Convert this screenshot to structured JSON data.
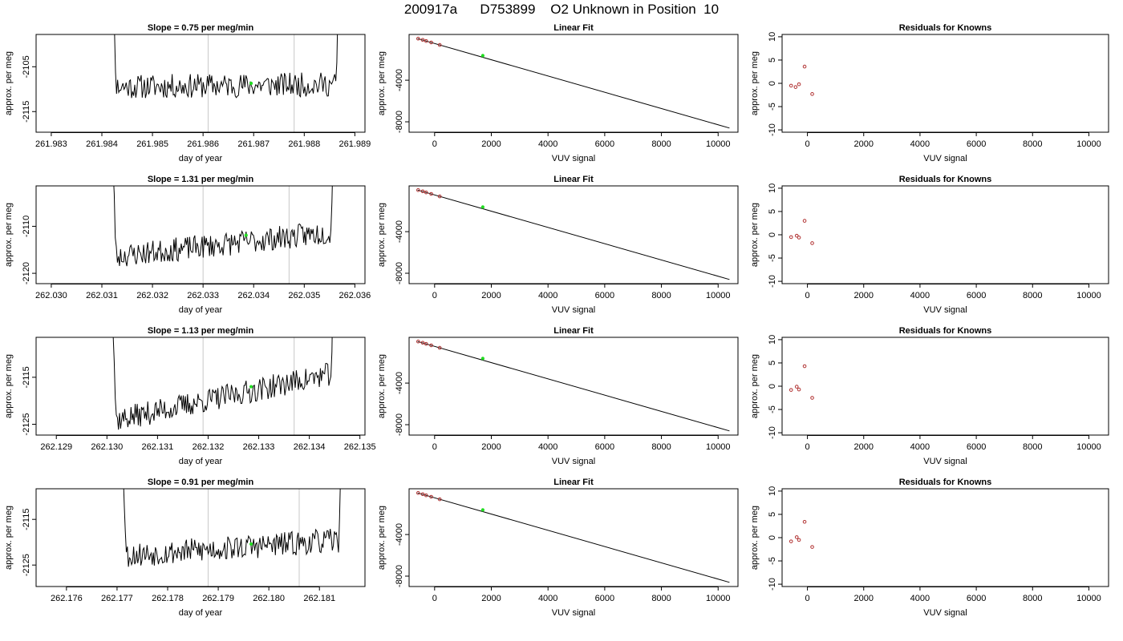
{
  "title": "200917a      D753899    O2 Unknown in Position  10",
  "colors": {
    "trace": "#000000",
    "vline": "#c8c8c8",
    "unknown": "#22dd22",
    "residual": "#b03030",
    "axis": "#000000"
  },
  "chart_data": [
    {
      "type": "line",
      "row": 1,
      "title": "Slope =  0.75  per meg/min",
      "xlabel": "day of year",
      "ylabel": "approx. per meg",
      "xlim": [
        261.9827,
        261.9892
      ],
      "ylim": [
        -2119.6,
        -2097.8
      ],
      "xticks": [
        "261.983",
        "261.984",
        "261.985",
        "261.986",
        "261.987",
        "261.988",
        "261.989"
      ],
      "xtick_values": [
        261.983,
        261.984,
        261.985,
        261.986,
        261.987,
        261.988,
        261.989
      ],
      "yticks": [
        "-2105",
        "-2115"
      ],
      "ytick_values": [
        -2105,
        -2115
      ],
      "vlines": [
        261.9861,
        261.9878
      ],
      "trace_x_start": 261.9841,
      "trace_x_end": 261.98875,
      "baseline": -2109.5,
      "drift": 0.6,
      "noise": 1.7,
      "seed": 11,
      "unknown_point": [
        261.98695,
        -2108.7
      ]
    },
    {
      "type": "line",
      "row": 1,
      "title": "Linear Fit",
      "xlabel": "VUV signal",
      "ylabel": "approx. per meg",
      "xlim": [
        -900,
        10700
      ],
      "ylim": [
        -9000,
        400
      ],
      "xticks": [
        "0",
        "2000",
        "4000",
        "6000",
        "8000",
        "10000"
      ],
      "xtick_values": [
        0,
        2000,
        4000,
        6000,
        8000,
        10000
      ],
      "yticks": [
        "-4000",
        "-8000"
      ],
      "ytick_values": [
        -4000,
        -8000
      ],
      "fit_line": {
        "x": [
          -600,
          10400
        ],
        "y": [
          0,
          -8600
        ]
      },
      "knowns": {
        "x": [
          -580,
          -420,
          -300,
          -120,
          180
        ],
        "y": [
          -2,
          -120,
          -230,
          -370,
          -610
        ]
      },
      "unknown_point": [
        1700,
        -1630
      ]
    },
    {
      "type": "scatter",
      "row": 1,
      "title": "Residuals for Knowns",
      "xlabel": "VUV signal",
      "ylabel": "approx. per meg",
      "xlim": [
        -900,
        10700
      ],
      "ylim": [
        -10.5,
        10.5
      ],
      "xticks": [
        "0",
        "2000",
        "4000",
        "6000",
        "8000",
        "10000"
      ],
      "xtick_values": [
        0,
        2000,
        4000,
        6000,
        8000,
        10000
      ],
      "yticks": [
        "-10",
        "-5",
        "0",
        "5",
        "10"
      ],
      "ytick_values": [
        -10,
        -5,
        0,
        5,
        10
      ],
      "x": [
        -580,
        -420,
        -300,
        -100,
        170
      ],
      "y": [
        -0.5,
        -0.8,
        -0.2,
        3.6,
        -2.3
      ]
    },
    {
      "type": "line",
      "row": 2,
      "title": "Slope =  1.31  per meg/min",
      "xlabel": "day of year",
      "ylabel": "approx. per meg",
      "xlim": [
        262.0297,
        262.0362
      ],
      "ylim": [
        -2122.2,
        -2101.4
      ],
      "xticks": [
        "262.030",
        "262.031",
        "262.032",
        "262.033",
        "262.034",
        "262.035",
        "262.036"
      ],
      "xtick_values": [
        262.03,
        262.031,
        262.032,
        262.033,
        262.034,
        262.035,
        262.036
      ],
      "yticks": [
        "-2110",
        "-2120"
      ],
      "ytick_values": [
        -2110,
        -2120
      ],
      "vlines": [
        262.033,
        262.0347
      ],
      "trace_x_start": 262.0311,
      "trace_x_end": 262.03565,
      "baseline": -2116.6,
      "drift": 5.5,
      "noise": 1.6,
      "seed": 23,
      "unknown_point": [
        262.03385,
        -2111.9
      ]
    },
    {
      "type": "line",
      "row": 2,
      "title": "Linear Fit",
      "xlabel": "VUV signal",
      "ylabel": "approx. per meg",
      "xlim": [
        -900,
        10700
      ],
      "ylim": [
        -9000,
        400
      ],
      "xticks": [
        "0",
        "2000",
        "4000",
        "6000",
        "8000",
        "10000"
      ],
      "xtick_values": [
        0,
        2000,
        4000,
        6000,
        8000,
        10000
      ],
      "yticks": [
        "-4000",
        "-8000"
      ],
      "ytick_values": [
        -4000,
        -8000
      ],
      "fit_line": {
        "x": [
          -600,
          10400
        ],
        "y": [
          0,
          -8600
        ]
      },
      "knowns": {
        "x": [
          -580,
          -420,
          -300,
          -120,
          180
        ],
        "y": [
          -2,
          -120,
          -230,
          -370,
          -610
        ]
      },
      "unknown_point": [
        1700,
        -1630
      ]
    },
    {
      "type": "scatter",
      "row": 2,
      "title": "Residuals for Knowns",
      "xlabel": "VUV signal",
      "ylabel": "approx. per meg",
      "xlim": [
        -900,
        10700
      ],
      "ylim": [
        -10.5,
        10.5
      ],
      "xticks": [
        "0",
        "2000",
        "4000",
        "6000",
        "8000",
        "10000"
      ],
      "xtick_values": [
        0,
        2000,
        4000,
        6000,
        8000,
        10000
      ],
      "yticks": [
        "-10",
        "-5",
        "0",
        "5",
        "10"
      ],
      "ytick_values": [
        -10,
        -5,
        0,
        5,
        10
      ],
      "x": [
        -580,
        -380,
        -300,
        -100,
        170
      ],
      "y": [
        -0.5,
        -0.2,
        -0.6,
        3.0,
        -1.8
      ]
    },
    {
      "type": "line",
      "row": 3,
      "title": "Slope =  1.13  per meg/min",
      "xlabel": "day of year",
      "ylabel": "approx. per meg",
      "xlim": [
        262.1286,
        262.1351
      ],
      "ylim": [
        -2127.3,
        -2106.5
      ],
      "xticks": [
        "262.129",
        "262.130",
        "262.131",
        "262.132",
        "262.133",
        "262.134",
        "262.135"
      ],
      "xtick_values": [
        262.129,
        262.13,
        262.131,
        262.132,
        262.133,
        262.134,
        262.135
      ],
      "yticks": [
        "-2115",
        "-2125"
      ],
      "ytick_values": [
        -2115,
        -2125
      ],
      "vlines": [
        262.1319,
        262.1337
      ],
      "trace_x_start": 262.13,
      "trace_x_end": 262.13455,
      "baseline": -2124.5,
      "drift": 10.5,
      "noise": 1.6,
      "seed": 37,
      "unknown_point": [
        262.13285,
        -2117.0
      ]
    },
    {
      "type": "line",
      "row": 3,
      "title": "Linear Fit",
      "xlabel": "VUV signal",
      "ylabel": "approx. per meg",
      "xlim": [
        -900,
        10700
      ],
      "ylim": [
        -9000,
        400
      ],
      "xticks": [
        "0",
        "2000",
        "4000",
        "6000",
        "8000",
        "10000"
      ],
      "xtick_values": [
        0,
        2000,
        4000,
        6000,
        8000,
        10000
      ],
      "yticks": [
        "-4000",
        "-8000"
      ],
      "ytick_values": [
        -4000,
        -8000
      ],
      "fit_line": {
        "x": [
          -600,
          10400
        ],
        "y": [
          0,
          -8600
        ]
      },
      "knowns": {
        "x": [
          -580,
          -420,
          -300,
          -120,
          180
        ],
        "y": [
          -2,
          -120,
          -230,
          -370,
          -610
        ]
      },
      "unknown_point": [
        1700,
        -1630
      ]
    },
    {
      "type": "scatter",
      "row": 3,
      "title": "Residuals for Knowns",
      "xlabel": "VUV signal",
      "ylabel": "approx. per meg",
      "xlim": [
        -900,
        10700
      ],
      "ylim": [
        -10.5,
        10.5
      ],
      "xticks": [
        "0",
        "2000",
        "4000",
        "6000",
        "8000",
        "10000"
      ],
      "xtick_values": [
        0,
        2000,
        4000,
        6000,
        8000,
        10000
      ],
      "yticks": [
        "-10",
        "-5",
        "0",
        "5",
        "10"
      ],
      "ytick_values": [
        -10,
        -5,
        0,
        5,
        10
      ],
      "x": [
        -580,
        -380,
        -300,
        -100,
        170
      ],
      "y": [
        -0.8,
        -0.1,
        -0.7,
        4.3,
        -2.5
      ]
    },
    {
      "type": "line",
      "row": 4,
      "title": "Slope =  0.91  per meg/min",
      "xlabel": "day of year",
      "ylabel": "approx. per meg",
      "xlim": [
        262.1754,
        262.1819
      ],
      "ylim": [
        -2129.7,
        -2108.3
      ],
      "xticks": [
        "262.176",
        "262.177",
        "262.178",
        "262.179",
        "262.180",
        "262.181"
      ],
      "xtick_values": [
        262.176,
        262.177,
        262.178,
        262.179,
        262.18,
        262.181
      ],
      "yticks": [
        "-2115",
        "-2125"
      ],
      "ytick_values": [
        -2115,
        -2125
      ],
      "vlines": [
        262.1788,
        262.1806
      ],
      "trace_x_start": 262.177,
      "trace_x_end": 262.1815,
      "baseline": -2123.0,
      "drift": 3.5,
      "noise": 1.7,
      "seed": 53,
      "unknown_point": [
        262.17965,
        -2120.4
      ]
    },
    {
      "type": "line",
      "row": 4,
      "title": "Linear Fit",
      "xlabel": "VUV signal",
      "ylabel": "approx. per meg",
      "xlim": [
        -900,
        10700
      ],
      "ylim": [
        -9000,
        400
      ],
      "xticks": [
        "0",
        "2000",
        "4000",
        "6000",
        "8000",
        "10000"
      ],
      "xtick_values": [
        0,
        2000,
        4000,
        6000,
        8000,
        10000
      ],
      "yticks": [
        "-4000",
        "-8000"
      ],
      "ytick_values": [
        -4000,
        -8000
      ],
      "fit_line": {
        "x": [
          -600,
          10400
        ],
        "y": [
          0,
          -8600
        ]
      },
      "knowns": {
        "x": [
          -580,
          -420,
          -300,
          -120,
          180
        ],
        "y": [
          -2,
          -120,
          -230,
          -370,
          -610
        ]
      },
      "unknown_point": [
        1700,
        -1630
      ]
    },
    {
      "type": "scatter",
      "row": 4,
      "title": "Residuals for Knowns",
      "xlabel": "VUV signal",
      "ylabel": "approx. per meg",
      "xlim": [
        -900,
        10700
      ],
      "ylim": [
        -10.5,
        10.5
      ],
      "xticks": [
        "0",
        "2000",
        "4000",
        "6000",
        "8000",
        "10000"
      ],
      "xtick_values": [
        0,
        2000,
        4000,
        6000,
        8000,
        10000
      ],
      "yticks": [
        "-10",
        "-5",
        "0",
        "5",
        "10"
      ],
      "ytick_values": [
        -10,
        -5,
        0,
        5,
        10
      ],
      "x": [
        -580,
        -380,
        -300,
        -100,
        170
      ],
      "y": [
        -0.8,
        0.1,
        -0.5,
        3.4,
        -2.0
      ]
    }
  ]
}
